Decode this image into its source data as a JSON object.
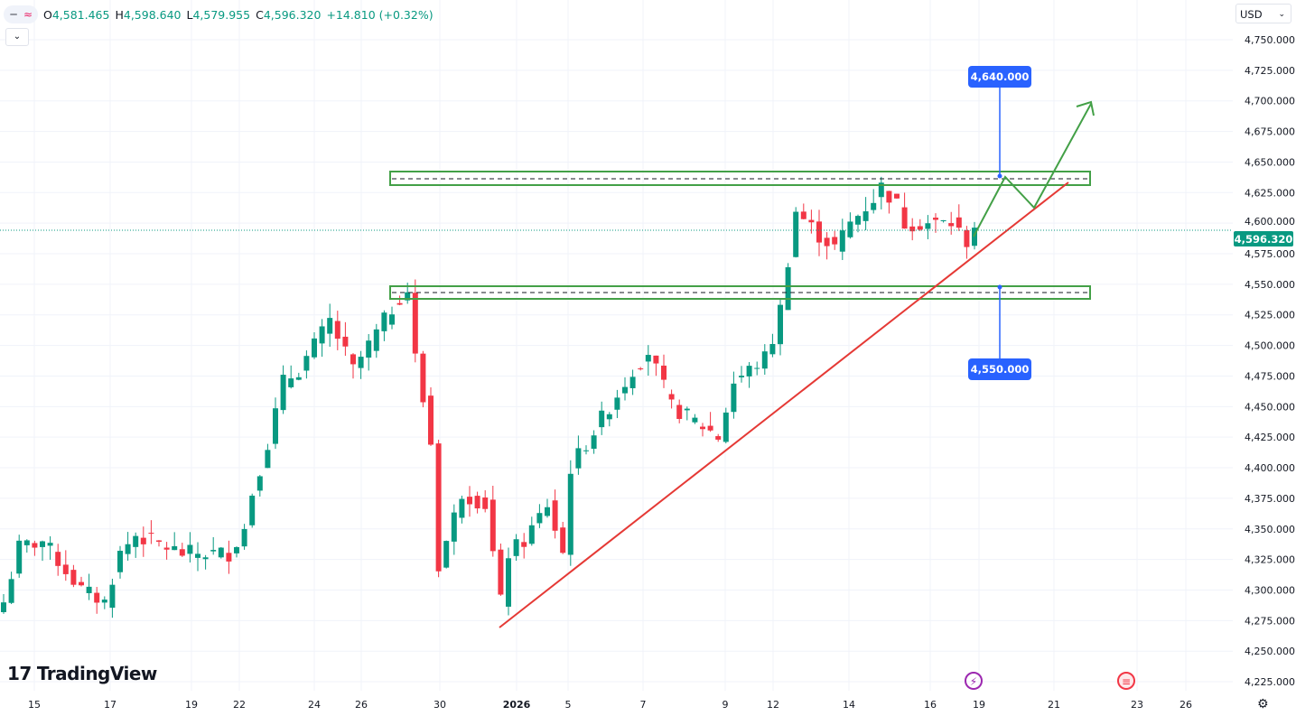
{
  "legend": {
    "open_label": "O",
    "open": "4,581.465",
    "high_label": "H",
    "high": "4,598.640",
    "low_label": "L",
    "low": "4,579.955",
    "close_label": "C",
    "close": "4,596.320",
    "change": "+14.810 (+0.32%)"
  },
  "currency": "USD",
  "current_price": "4,596.320",
  "price_axis": [
    "4,750.000",
    "4,725.000",
    "4,700.000",
    "4,675.000",
    "4,650.000",
    "4,625.000",
    "4,600.000",
    "4,575.000",
    "4,550.000",
    "4,525.000",
    "4,500.000",
    "4,475.000",
    "4,450.000",
    "4,425.000",
    "4,400.000",
    "4,375.000",
    "4,350.000",
    "4,325.000",
    "4,300.000",
    "4,275.000",
    "4,250.000",
    "4,225.000"
  ],
  "time_axis": [
    "15",
    "17",
    "19",
    "22",
    "24",
    "26",
    "30",
    "2026",
    "5",
    "7",
    "9",
    "12",
    "14",
    "16",
    "19",
    "21",
    "23",
    "26"
  ],
  "annotations": {
    "target_label": "4,640.000",
    "support_label": "4,550.000"
  },
  "brand": "TradingView",
  "colors": {
    "up": "#089981",
    "down": "#f23645",
    "zone": "#43a047",
    "trend": "#e53935",
    "label": "#2962ff"
  },
  "price_path": [
    [
      0,
      4290
    ],
    [
      2,
      4335
    ],
    [
      5,
      4340
    ],
    [
      10,
      4300
    ],
    [
      13,
      4290
    ],
    [
      15,
      4330
    ],
    [
      17,
      4345
    ],
    [
      23,
      4330
    ],
    [
      29,
      4330
    ],
    [
      31,
      4350
    ],
    [
      32,
      4380
    ],
    [
      34,
      4420
    ],
    [
      36,
      4470
    ],
    [
      38,
      4480
    ],
    [
      42,
      4520
    ],
    [
      45,
      4480
    ],
    [
      48,
      4510
    ],
    [
      51,
      4540
    ],
    [
      52,
      4545
    ],
    [
      53,
      4490
    ],
    [
      55,
      4420
    ],
    [
      56,
      4320
    ],
    [
      57,
      4340
    ],
    [
      59,
      4380
    ],
    [
      62,
      4370
    ],
    [
      64,
      4290
    ],
    [
      65,
      4330
    ],
    [
      67,
      4340
    ],
    [
      70,
      4370
    ],
    [
      72,
      4330
    ],
    [
      73,
      4400
    ],
    [
      77,
      4440
    ],
    [
      81,
      4480
    ],
    [
      83,
      4495
    ],
    [
      86,
      4450
    ],
    [
      91,
      4430
    ],
    [
      92,
      4425
    ],
    [
      94,
      4470
    ],
    [
      98,
      4490
    ],
    [
      99,
      4505
    ],
    [
      100,
      4530
    ],
    [
      101,
      4570
    ],
    [
      102,
      4610
    ],
    [
      105,
      4590
    ],
    [
      107,
      4580
    ],
    [
      109,
      4600
    ],
    [
      112,
      4620
    ],
    [
      113,
      4630
    ],
    [
      115,
      4615
    ],
    [
      116,
      4600
    ],
    [
      119,
      4600
    ],
    [
      122,
      4600
    ],
    [
      124,
      4585
    ],
    [
      125,
      4596.32
    ]
  ]
}
